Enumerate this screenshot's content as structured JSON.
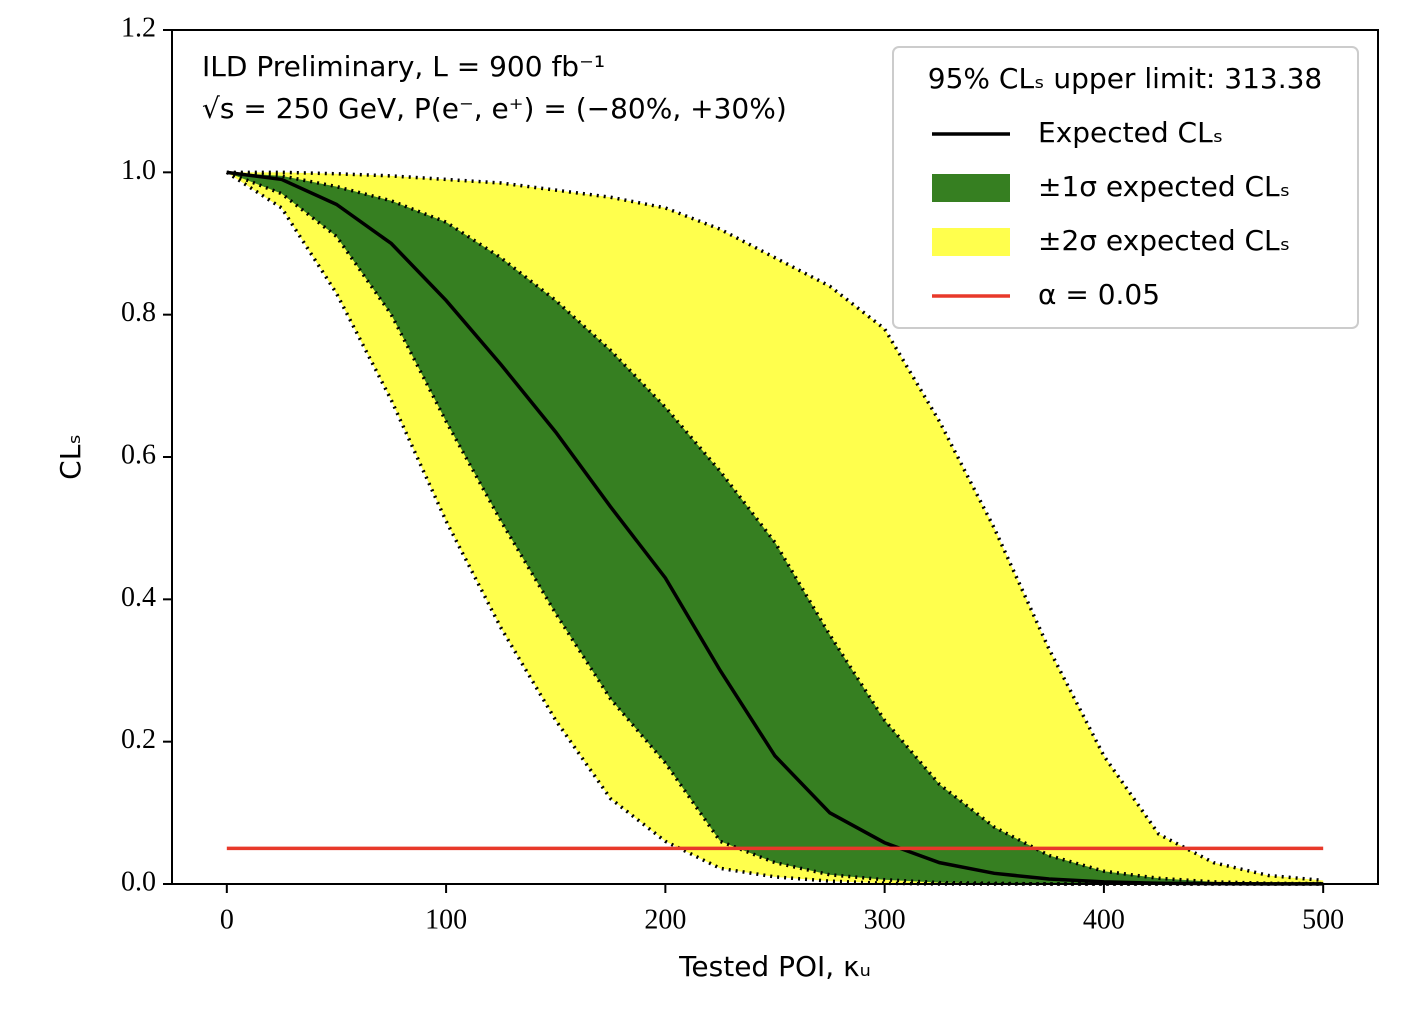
{
  "chart_data": {
    "type": "line",
    "annotations": [
      "ILD Preliminary, L = 900 fb⁻¹",
      "√s = 250 GeV, P(e⁻, e⁺) = (−80%, +30%)"
    ],
    "legend_title": "95% CLₛ upper limit: 313.38",
    "xlabel": "Tested POI, κᵤ",
    "ylabel": "CLₛ",
    "x": [
      0,
      25,
      50,
      75,
      100,
      125,
      150,
      175,
      200,
      225,
      250,
      275,
      300,
      325,
      350,
      375,
      400,
      425,
      450,
      475,
      500
    ],
    "series": [
      {
        "name": "Expected CLₛ",
        "color": "#000000",
        "values": [
          1,
          0.99,
          0.955,
          0.9,
          0.82,
          0.73,
          0.635,
          0.53,
          0.43,
          0.3,
          0.18,
          0.1,
          0.058,
          0.03,
          0.015,
          0.007,
          0.003,
          0.001,
          0.0005,
          0.0002,
          0.0001
        ]
      }
    ],
    "bands": [
      {
        "name": "±2σ expected CLₛ",
        "color": "#ffff4d",
        "lower": [
          1,
          0.95,
          0.83,
          0.68,
          0.51,
          0.36,
          0.23,
          0.12,
          0.06,
          0.022,
          0.01,
          0.004,
          0.001,
          0,
          0,
          0,
          0,
          0,
          0,
          0,
          0
        ],
        "upper": [
          1,
          1,
          0.998,
          0.995,
          0.99,
          0.985,
          0.975,
          0.965,
          0.95,
          0.92,
          0.88,
          0.84,
          0.78,
          0.65,
          0.5,
          0.33,
          0.18,
          0.07,
          0.03,
          0.012,
          0.005
        ]
      },
      {
        "name": "±1σ expected CLₛ",
        "color": "#367f21",
        "lower": [
          1,
          0.97,
          0.91,
          0.8,
          0.65,
          0.51,
          0.38,
          0.26,
          0.17,
          0.06,
          0.03,
          0.013,
          0.006,
          0.002,
          0.001,
          0,
          0,
          0,
          0,
          0,
          0
        ],
        "upper": [
          1,
          0.995,
          0.98,
          0.96,
          0.93,
          0.88,
          0.82,
          0.75,
          0.67,
          0.58,
          0.48,
          0.35,
          0.23,
          0.14,
          0.08,
          0.04,
          0.018,
          0.008,
          0.003,
          0.001,
          0.0005
        ]
      }
    ],
    "threshold": {
      "name": "α = 0.05",
      "color": "#e8392a",
      "value": 0.05
    },
    "xlim": [
      -25,
      525
    ],
    "ylim": [
      0,
      1.2
    ],
    "xticks": [
      0,
      100,
      200,
      300,
      400,
      500
    ],
    "yticks": [
      {
        "value": 0,
        "label": "0.0"
      },
      0.2,
      0.4,
      0.6,
      0.8,
      {
        "value": 1,
        "label": "1.0"
      },
      1.2
    ]
  }
}
